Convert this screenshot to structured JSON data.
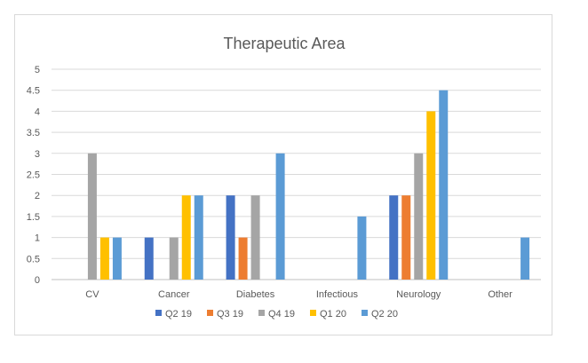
{
  "chart_data": {
    "type": "bar",
    "title": "Therapeutic Area",
    "categories": [
      "CV",
      "Cancer",
      "Diabetes",
      "Infectious",
      "Neurology",
      "Other"
    ],
    "series": [
      {
        "name": "Q2 19",
        "color": "#4472C4",
        "values": [
          0,
          1,
          2,
          0,
          2,
          0
        ]
      },
      {
        "name": "Q3 19",
        "color": "#ED7D31",
        "values": [
          0,
          0,
          1,
          0,
          2,
          0
        ]
      },
      {
        "name": "Q4 19",
        "color": "#A5A5A5",
        "values": [
          3,
          1,
          2,
          0,
          3,
          0
        ]
      },
      {
        "name": "Q1 20",
        "color": "#FFC000",
        "values": [
          1,
          2,
          0,
          0,
          4,
          0
        ]
      },
      {
        "name": "Q2 20",
        "color": "#5B9BD5",
        "values": [
          1,
          2,
          3,
          1.5,
          4.5,
          1
        ]
      }
    ],
    "ylim": [
      0,
      5
    ],
    "ytick_step": 0.5,
    "yticks": [
      "0",
      "0.5",
      "1",
      "1.5",
      "2",
      "2.5",
      "3",
      "3.5",
      "4",
      "4.5",
      "5"
    ],
    "grid": true,
    "legend_position": "bottom"
  }
}
